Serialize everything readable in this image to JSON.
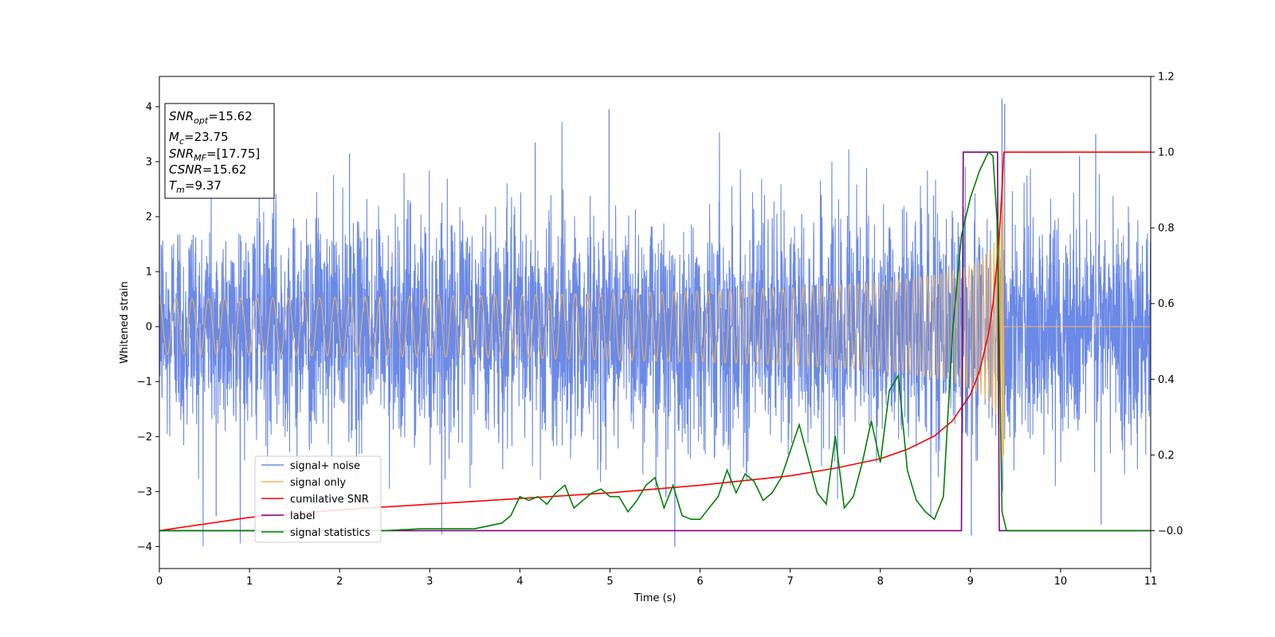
{
  "chart_data": {
    "type": "line",
    "title": "",
    "xlabel": "Time (s)",
    "ylabel": "Whitened strain",
    "y2label": "",
    "xlim": [
      0,
      11
    ],
    "ylim": [
      -4.4,
      4.55
    ],
    "y2lim": [
      -0.1,
      1.2
    ],
    "x_ticks": [
      "0",
      "1",
      "2",
      "3",
      "4",
      "5",
      "6",
      "7",
      "8",
      "9",
      "10",
      "11"
    ],
    "y_ticks": [
      "−4",
      "−3",
      "−2",
      "−1",
      "0",
      "1",
      "2",
      "3",
      "4"
    ],
    "y2_ticks": [
      "−0.0",
      "0.2",
      "0.4",
      "0.6",
      "0.8",
      "1.0",
      "1.2"
    ],
    "grid": false,
    "legend_position": "lower-left",
    "colors": {
      "signal_noise": "#6b89e6",
      "signal_only": "#f3b65c",
      "cumulative_snr": "#ff0000",
      "label": "#800080",
      "signal_statistics": "#008000"
    },
    "annotation": {
      "snr_opt": {
        "base": "SNR",
        "sub": "opt",
        "value": "=15.62"
      },
      "mc": {
        "base": "M",
        "sub": "c",
        "value": "=23.75"
      },
      "snr_mf": {
        "base": "SNR",
        "sub": "MF",
        "value": "=[17.75]"
      },
      "csnr": {
        "base": "CSNR",
        "value": "=15.62"
      },
      "tm": {
        "base": "T",
        "sub": "m",
        "value": "=9.37"
      }
    },
    "series": [
      {
        "name": "signal+ noise",
        "axis": "left",
        "t_end": 11,
        "noise_amplitude": 1.0,
        "min_y": -4.0,
        "max_y": 4.15,
        "spikes": [
          {
            "x": 4.99,
            "y": 3.95
          },
          {
            "x": 4.17,
            "y": 3.35
          },
          {
            "x": 2.11,
            "y": 3.15
          },
          {
            "x": 9.35,
            "y": 4.15
          },
          {
            "x": 9.38,
            "y": 4.05
          },
          {
            "x": 10.39,
            "y": 3.5
          },
          {
            "x": 10.21,
            "y": 3.1
          },
          {
            "x": 0.63,
            "y": -3.45
          },
          {
            "x": 5.72,
            "y": -4.0
          },
          {
            "x": 9.01,
            "y": -3.8
          },
          {
            "x": 10.45,
            "y": -3.6
          },
          {
            "x": 5.62,
            "y": -3.1
          }
        ]
      },
      {
        "name": "signal only",
        "axis": "left",
        "t_merger": 9.37,
        "peak_amplitude": 3.5
      },
      {
        "name": "cumilative SNR",
        "axis": "right",
        "x": [
          0,
          1,
          2,
          3,
          4,
          5,
          6,
          7,
          7.5,
          8,
          8.3,
          8.6,
          8.8,
          9.0,
          9.1,
          9.2,
          9.25,
          9.3,
          9.33,
          9.35,
          9.37,
          11
        ],
        "y": [
          0.0,
          0.035,
          0.055,
          0.07,
          0.085,
          0.1,
          0.12,
          0.145,
          0.165,
          0.19,
          0.215,
          0.25,
          0.29,
          0.36,
          0.42,
          0.52,
          0.6,
          0.72,
          0.82,
          0.9,
          1.0,
          1.0
        ]
      },
      {
        "name": "label",
        "axis": "right",
        "x": [
          0,
          8.9,
          8.92,
          9.3,
          9.32,
          11
        ],
        "y": [
          0,
          0,
          1,
          1,
          0,
          0
        ]
      },
      {
        "name": "signal statistics",
        "axis": "right",
        "x": [
          0,
          2.5,
          2.9,
          3.5,
          3.8,
          3.9,
          4.0,
          4.1,
          4.2,
          4.3,
          4.4,
          4.5,
          4.6,
          4.7,
          4.8,
          4.9,
          5.0,
          5.1,
          5.2,
          5.3,
          5.4,
          5.5,
          5.6,
          5.7,
          5.8,
          5.9,
          6.0,
          6.1,
          6.2,
          6.3,
          6.4,
          6.5,
          6.6,
          6.7,
          6.8,
          6.9,
          7.0,
          7.1,
          7.2,
          7.3,
          7.4,
          7.5,
          7.6,
          7.7,
          7.8,
          7.9,
          8.0,
          8.1,
          8.2,
          8.3,
          8.4,
          8.5,
          8.6,
          8.7,
          8.8,
          8.9,
          9.0,
          9.1,
          9.2,
          9.25,
          9.3,
          9.35,
          9.4,
          11
        ],
        "y": [
          0,
          0,
          0.005,
          0.005,
          0.02,
          0.04,
          0.09,
          0.08,
          0.09,
          0.07,
          0.1,
          0.12,
          0.06,
          0.08,
          0.1,
          0.11,
          0.09,
          0.09,
          0.05,
          0.08,
          0.12,
          0.14,
          0.06,
          0.12,
          0.04,
          0.03,
          0.03,
          0.06,
          0.09,
          0.16,
          0.1,
          0.15,
          0.13,
          0.08,
          0.1,
          0.14,
          0.21,
          0.28,
          0.19,
          0.1,
          0.07,
          0.25,
          0.06,
          0.09,
          0.18,
          0.29,
          0.18,
          0.37,
          0.41,
          0.16,
          0.08,
          0.05,
          0.03,
          0.09,
          0.52,
          0.78,
          0.88,
          0.95,
          1.0,
          0.99,
          0.8,
          0.05,
          0.0,
          0.0
        ]
      }
    ]
  }
}
